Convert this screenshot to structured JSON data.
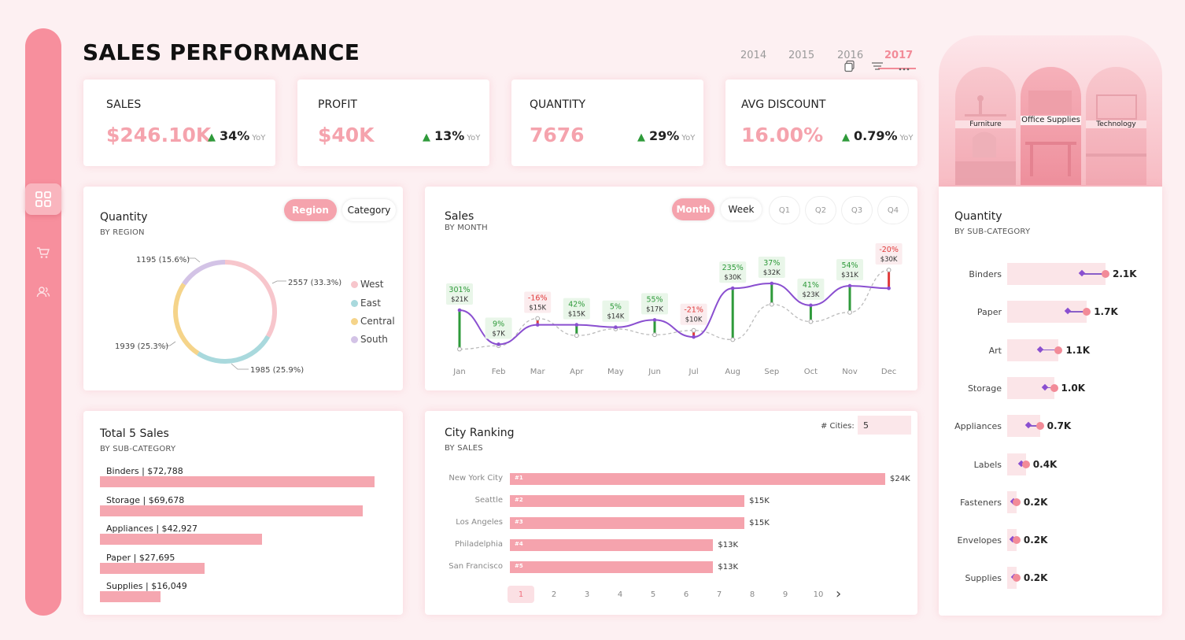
{
  "title": "SALES PERFORMANCE",
  "years": [
    "2014",
    "2015",
    "2016",
    "2017"
  ],
  "active_year": "2017",
  "colors": {
    "accent": "#f5a3ad",
    "rail": "#f78f9d",
    "up": "#2e9a3a",
    "down": "#e03a3a",
    "line": "#8a4fd0"
  },
  "nav_icons": [
    "dashboard-icon",
    "cart-icon",
    "users-icon"
  ],
  "kpis": [
    {
      "label": "SALES",
      "value": "$246.10K",
      "delta": "34%",
      "yoy": "YoY"
    },
    {
      "label": "PROFIT",
      "value": "$40K",
      "delta": "13%",
      "yoy": "YoY"
    },
    {
      "label": "QUANTITY",
      "value": "7676",
      "delta": "29%",
      "yoy": "YoY"
    },
    {
      "label": "AVG DISCOUNT",
      "value": "16.00%",
      "delta": "0.79%",
      "yoy": "YoY"
    }
  ],
  "categories_panel": {
    "tiles": [
      "Furniture",
      "Office Supplies",
      "Technology"
    ]
  },
  "region_card": {
    "title": "Quantity",
    "subtitle": "BY REGION",
    "toggle": [
      "Region",
      "Category"
    ],
    "legend": [
      "West",
      "East",
      "Central",
      "South"
    ],
    "labels": [
      "2557 (33.3%)",
      "1985 (25.9%)",
      "1939 (25.3%)",
      "1195 (15.6%)"
    ]
  },
  "sales_card": {
    "title": "Sales",
    "subtitle": "BY MONTH",
    "toggle": [
      "Month",
      "Week"
    ],
    "quarters": [
      "Q1",
      "Q2",
      "Q3",
      "Q4"
    ]
  },
  "top5_card": {
    "title": "Total 5 Sales",
    "subtitle": "BY SUB-CATEGORY"
  },
  "city_card": {
    "title": "City Ranking",
    "subtitle": "BY SALES",
    "cities_label": "# Cities:",
    "cities_value": "5",
    "pages": [
      "1",
      "2",
      "3",
      "4",
      "5",
      "6",
      "7",
      "8",
      "9",
      "10"
    ],
    "next": "›"
  },
  "subcat_card": {
    "title": "Quantity",
    "subtitle": "BY SUB-CATEGORY"
  },
  "chart_data": [
    {
      "type": "pie",
      "name": "Quantity by Region",
      "categories": [
        "West",
        "East",
        "Central",
        "South"
      ],
      "values": [
        2557,
        1985,
        1939,
        1195
      ],
      "percent": [
        33.3,
        25.9,
        25.3,
        15.6
      ],
      "colors": [
        "#f7c6cc",
        "#a9d9dd",
        "#f5d48a",
        "#d3c3e6"
      ]
    },
    {
      "type": "line",
      "name": "Sales by Month",
      "x": [
        "Jan",
        "Feb",
        "Mar",
        "Apr",
        "May",
        "Jun",
        "Jul",
        "Aug",
        "Sep",
        "Oct",
        "Nov",
        "Dec"
      ],
      "series": [
        {
          "name": "2017",
          "values": [
            21,
            7,
            15,
            15,
            14,
            17,
            10,
            30,
            32,
            23,
            31,
            30
          ]
        },
        {
          "name": "2016",
          "values": [
            5,
            6.4,
            17.6,
            10.6,
            13.3,
            10.9,
            12.7,
            8.9,
            23.4,
            16.3,
            20.1,
            37.5
          ]
        }
      ],
      "point_labels": [
        "$21K",
        "$7K",
        "$15K",
        "$15K",
        "$14K",
        "$17K",
        "$10K",
        "$30K",
        "$32K",
        "$23K",
        "$31K",
        "$30K"
      ],
      "yoy_labels": [
        "301%",
        "9%",
        "-16%",
        "42%",
        "5%",
        "55%",
        "-21%",
        "235%",
        "37%",
        "41%",
        "54%",
        "-20%"
      ],
      "ylim": [
        0,
        40
      ]
    },
    {
      "type": "bar",
      "name": "Total 5 Sales by Sub-Category",
      "categories": [
        "Binders",
        "Storage",
        "Appliances",
        "Paper",
        "Supplies"
      ],
      "values": [
        72788,
        69678,
        42927,
        27695,
        16049
      ],
      "labels": [
        "Binders | $72,788",
        "Storage | $69,678",
        "Appliances | $42,927",
        "Paper | $27,695",
        "Supplies | $16,049"
      ]
    },
    {
      "type": "bar",
      "name": "City Ranking by Sales",
      "categories": [
        "New York City",
        "Seattle",
        "Los Angeles",
        "Philadelphia",
        "San Francisco"
      ],
      "values": [
        24,
        15,
        15,
        13,
        13
      ],
      "ranks": [
        "#1",
        "#2",
        "#3",
        "#4",
        "#5"
      ],
      "value_labels": [
        "$24K",
        "$15K",
        "$15K",
        "$13K",
        "$13K"
      ]
    },
    {
      "type": "scatter",
      "name": "Quantity by Sub-Category",
      "categories": [
        "Binders",
        "Paper",
        "Art",
        "Storage",
        "Appliances",
        "Labels",
        "Fasteners",
        "Envelopes",
        "Supplies"
      ],
      "values": [
        2.1,
        1.7,
        1.1,
        1.0,
        0.7,
        0.4,
        0.2,
        0.2,
        0.2
      ],
      "prev_values": [
        1.6,
        1.3,
        0.7,
        0.8,
        0.45,
        0.3,
        0.13,
        0.12,
        0.15
      ],
      "value_labels": [
        "2.1K",
        "1.7K",
        "1.1K",
        "1.0K",
        "0.7K",
        "0.4K",
        "0.2K",
        "0.2K",
        "0.2K"
      ]
    }
  ]
}
